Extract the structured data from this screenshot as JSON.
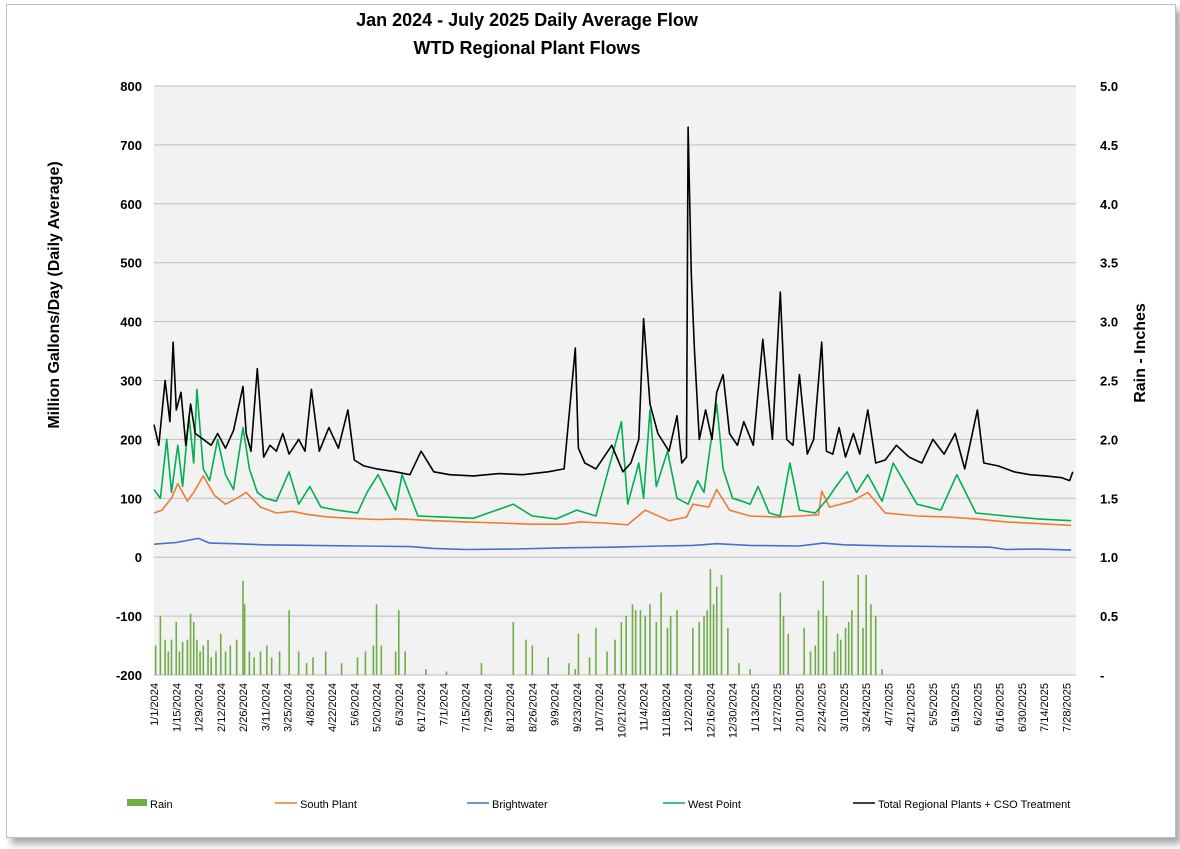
{
  "chart_data": {
    "type": "line",
    "title": "Jan 2024 - July 2025 Daily Average Flow",
    "subtitle": "WTD Regional Plant Flows",
    "ylabel": "Million Gallons/Day (Daily Average)",
    "y2label": "Rain - Inches",
    "ylim": [
      -200,
      800
    ],
    "yticks": [
      -200,
      -100,
      0,
      100,
      200,
      300,
      400,
      500,
      600,
      700,
      800
    ],
    "y2lim": [
      0,
      5
    ],
    "y2ticks": [
      "-",
      "0.5",
      "1.0",
      "1.5",
      "2.0",
      "2.5",
      "3.0",
      "3.5",
      "4.0",
      "4.5",
      "5.0"
    ],
    "xlim": [
      "2024-01-01",
      "2025-08-03"
    ],
    "x_tick_labels": [
      "1/1/2024",
      "1/15/2024",
      "1/29/2024",
      "2/12/2024",
      "2/26/2024",
      "3/11/2024",
      "3/25/2024",
      "4/8/2024",
      "4/22/2024",
      "5/6/2024",
      "5/20/2024",
      "6/3/2024",
      "6/17/2024",
      "7/1/2024",
      "7/15/2024",
      "7/29/2024",
      "8/12/2024",
      "8/26/2024",
      "9/9/2024",
      "9/23/2024",
      "10/7/2024",
      "10/21/2024",
      "11/4/2024",
      "11/18/2024",
      "12/2/2024",
      "12/16/2024",
      "12/30/2024",
      "1/13/2025",
      "1/27/2025",
      "2/10/2025",
      "2/24/2025",
      "3/10/2025",
      "3/24/2025",
      "4/7/2025",
      "4/21/2025",
      "5/5/2025",
      "5/19/2025",
      "6/2/2025",
      "6/16/2025",
      "6/30/2025",
      "7/14/2025",
      "7/28/2025"
    ],
    "grid": true,
    "legend_position": "bottom",
    "series": [
      {
        "name": "Rain",
        "type": "bar",
        "axis": "right",
        "color": "#70ad47",
        "x": [
          "2024-01-02",
          "2024-01-05",
          "2024-01-08",
          "2024-01-10",
          "2024-01-12",
          "2024-01-15",
          "2024-01-17",
          "2024-01-19",
          "2024-01-22",
          "2024-01-24",
          "2024-01-26",
          "2024-01-28",
          "2024-01-30",
          "2024-02-01",
          "2024-02-04",
          "2024-02-06",
          "2024-02-09",
          "2024-02-12",
          "2024-02-15",
          "2024-02-18",
          "2024-02-22",
          "2024-02-26",
          "2024-02-27",
          "2024-03-01",
          "2024-03-04",
          "2024-03-08",
          "2024-03-12",
          "2024-03-15",
          "2024-03-20",
          "2024-03-26",
          "2024-04-01",
          "2024-04-06",
          "2024-04-10",
          "2024-04-18",
          "2024-04-28",
          "2024-05-08",
          "2024-05-13",
          "2024-05-18",
          "2024-05-20",
          "2024-05-23",
          "2024-06-01",
          "2024-06-03",
          "2024-06-07",
          "2024-06-20",
          "2024-07-03",
          "2024-07-25",
          "2024-08-14",
          "2024-08-22",
          "2024-08-26",
          "2024-09-05",
          "2024-09-18",
          "2024-09-22",
          "2024-09-24",
          "2024-10-01",
          "2024-10-05",
          "2024-10-12",
          "2024-10-17",
          "2024-10-21",
          "2024-10-24",
          "2024-10-28",
          "2024-10-30",
          "2024-11-02",
          "2024-11-05",
          "2024-11-08",
          "2024-11-12",
          "2024-11-15",
          "2024-11-19",
          "2024-11-21",
          "2024-11-25",
          "2024-12-05",
          "2024-12-09",
          "2024-12-12",
          "2024-12-14",
          "2024-12-16",
          "2024-12-18",
          "2024-12-20",
          "2024-12-23",
          "2024-12-27",
          "2025-01-03",
          "2025-01-10",
          "2025-01-29",
          "2025-01-31",
          "2025-02-03",
          "2025-02-13",
          "2025-02-17",
          "2025-02-20",
          "2025-02-22",
          "2025-02-25",
          "2025-02-27",
          "2025-03-04",
          "2025-03-06",
          "2025-03-08",
          "2025-03-11",
          "2025-03-13",
          "2025-03-15",
          "2025-03-19",
          "2025-03-22",
          "2025-03-24",
          "2025-03-27",
          "2025-03-30",
          "2025-04-03"
        ],
        "values": [
          0.25,
          0.5,
          0.3,
          0.2,
          0.3,
          0.45,
          0.2,
          0.28,
          0.3,
          0.52,
          0.45,
          0.3,
          0.2,
          0.25,
          0.3,
          0.15,
          0.2,
          0.35,
          0.2,
          0.25,
          0.3,
          0.8,
          0.6,
          0.2,
          0.15,
          0.2,
          0.25,
          0.15,
          0.2,
          0.55,
          0.2,
          0.1,
          0.15,
          0.2,
          0.1,
          0.15,
          0.2,
          0.25,
          0.6,
          0.25,
          0.2,
          0.55,
          0.2,
          0.05,
          0.03,
          0.1,
          0.45,
          0.3,
          0.25,
          0.15,
          0.1,
          0.05,
          0.35,
          0.15,
          0.4,
          0.2,
          0.3,
          0.45,
          0.5,
          0.6,
          0.55,
          0.55,
          0.5,
          0.6,
          0.45,
          0.7,
          0.4,
          0.5,
          0.55,
          0.4,
          0.45,
          0.5,
          0.55,
          0.9,
          0.6,
          0.75,
          0.85,
          0.4,
          0.1,
          0.05,
          0.7,
          0.5,
          0.35,
          0.4,
          0.2,
          0.25,
          0.55,
          0.8,
          0.5,
          0.2,
          0.35,
          0.3,
          0.4,
          0.45,
          0.55,
          0.85,
          0.4,
          0.85,
          0.6,
          0.5,
          0.05
        ]
      },
      {
        "name": "South Plant",
        "type": "line",
        "axis": "left",
        "color": "#ed7d31",
        "x": [
          "2024-01-01",
          "2024-01-06",
          "2024-01-12",
          "2024-01-16",
          "2024-01-22",
          "2024-01-26",
          "2024-02-01",
          "2024-02-08",
          "2024-02-15",
          "2024-02-22",
          "2024-02-28",
          "2024-03-08",
          "2024-03-18",
          "2024-03-28",
          "2024-04-08",
          "2024-04-20",
          "2024-05-04",
          "2024-05-20",
          "2024-06-04",
          "2024-06-25",
          "2024-07-15",
          "2024-08-05",
          "2024-08-25",
          "2024-09-15",
          "2024-09-25",
          "2024-10-10",
          "2024-10-25",
          "2024-11-05",
          "2024-11-20",
          "2024-12-01",
          "2024-12-05",
          "2024-12-15",
          "2024-12-20",
          "2024-12-28",
          "2025-01-10",
          "2025-01-28",
          "2025-02-10",
          "2025-02-22",
          "2025-02-24",
          "2025-03-01",
          "2025-03-15",
          "2025-03-25",
          "2025-04-05",
          "2025-04-25",
          "2025-05-15",
          "2025-06-01",
          "2025-06-20",
          "2025-07-10",
          "2025-07-31"
        ],
        "values": [
          75,
          80,
          100,
          125,
          95,
          110,
          138,
          105,
          90,
          100,
          110,
          85,
          75,
          78,
          72,
          68,
          66,
          64,
          65,
          62,
          60,
          58,
          56,
          56,
          60,
          58,
          55,
          80,
          62,
          68,
          90,
          85,
          115,
          80,
          70,
          68,
          70,
          72,
          112,
          85,
          95,
          110,
          75,
          70,
          68,
          65,
          60,
          57,
          54
        ]
      },
      {
        "name": "Brightwater",
        "type": "line",
        "axis": "left",
        "color": "#4472c4",
        "x": [
          "2024-01-01",
          "2024-01-15",
          "2024-01-29",
          "2024-02-05",
          "2024-02-20",
          "2024-03-10",
          "2024-04-10",
          "2024-05-10",
          "2024-06-10",
          "2024-06-25",
          "2024-07-15",
          "2024-08-15",
          "2024-09-15",
          "2024-10-15",
          "2024-11-15",
          "2024-12-05",
          "2024-12-20",
          "2025-01-10",
          "2025-02-10",
          "2025-02-25",
          "2025-03-10",
          "2025-04-10",
          "2025-05-10",
          "2025-06-10",
          "2025-06-20",
          "2025-07-10",
          "2025-07-31"
        ],
        "values": [
          22,
          25,
          32,
          24,
          23,
          21,
          20,
          19,
          18,
          15,
          13,
          14,
          16,
          17,
          19,
          20,
          23,
          20,
          19,
          24,
          21,
          19,
          18,
          17,
          13,
          14,
          12
        ]
      },
      {
        "name": "West Point",
        "type": "line",
        "axis": "left",
        "color": "#00b050",
        "x": [
          "2024-01-01",
          "2024-01-05",
          "2024-01-09",
          "2024-01-12",
          "2024-01-16",
          "2024-01-19",
          "2024-01-23",
          "2024-01-26",
          "2024-01-28",
          "2024-02-01",
          "2024-02-05",
          "2024-02-10",
          "2024-02-15",
          "2024-02-20",
          "2024-02-26",
          "2024-03-01",
          "2024-03-06",
          "2024-03-11",
          "2024-03-18",
          "2024-03-26",
          "2024-04-01",
          "2024-04-08",
          "2024-04-15",
          "2024-04-25",
          "2024-05-08",
          "2024-05-14",
          "2024-05-21",
          "2024-06-01",
          "2024-06-05",
          "2024-06-15",
          "2024-07-01",
          "2024-07-20",
          "2024-08-14",
          "2024-08-26",
          "2024-09-10",
          "2024-09-23",
          "2024-10-05",
          "2024-10-21",
          "2024-10-25",
          "2024-11-01",
          "2024-11-04",
          "2024-11-08",
          "2024-11-12",
          "2024-11-19",
          "2024-11-25",
          "2024-12-02",
          "2024-12-08",
          "2024-12-12",
          "2024-12-16",
          "2024-12-20",
          "2024-12-24",
          "2024-12-30",
          "2025-01-05",
          "2025-01-10",
          "2025-01-15",
          "2025-01-22",
          "2025-01-29",
          "2025-02-04",
          "2025-02-10",
          "2025-02-20",
          "2025-02-28",
          "2025-03-05",
          "2025-03-12",
          "2025-03-18",
          "2025-03-25",
          "2025-04-03",
          "2025-04-10",
          "2025-04-25",
          "2025-05-10",
          "2025-05-20",
          "2025-06-01",
          "2025-06-20",
          "2025-07-10",
          "2025-07-31"
        ],
        "values": [
          115,
          100,
          200,
          110,
          190,
          120,
          240,
          160,
          285,
          150,
          130,
          200,
          140,
          115,
          220,
          150,
          110,
          100,
          95,
          145,
          90,
          120,
          85,
          80,
          75,
          110,
          140,
          80,
          140,
          70,
          68,
          66,
          90,
          70,
          65,
          80,
          70,
          230,
          90,
          160,
          100,
          250,
          120,
          180,
          100,
          90,
          130,
          110,
          190,
          260,
          150,
          100,
          95,
          90,
          120,
          75,
          70,
          160,
          80,
          75,
          100,
          120,
          145,
          110,
          140,
          95,
          160,
          90,
          80,
          140,
          75,
          70,
          65,
          62
        ]
      },
      {
        "name": "Total Regional Plants + CSO Treatment",
        "type": "line",
        "axis": "left",
        "color": "#000000",
        "x": [
          "2024-01-01",
          "2024-01-04",
          "2024-01-08",
          "2024-01-11",
          "2024-01-13",
          "2024-01-15",
          "2024-01-18",
          "2024-01-21",
          "2024-01-24",
          "2024-01-27",
          "2024-02-01",
          "2024-02-06",
          "2024-02-10",
          "2024-02-15",
          "2024-02-20",
          "2024-02-26",
          "2024-02-28",
          "2024-03-02",
          "2024-03-06",
          "2024-03-10",
          "2024-03-14",
          "2024-03-18",
          "2024-03-22",
          "2024-03-26",
          "2024-04-01",
          "2024-04-05",
          "2024-04-09",
          "2024-04-14",
          "2024-04-20",
          "2024-04-26",
          "2024-05-02",
          "2024-05-06",
          "2024-05-12",
          "2024-05-20",
          "2024-06-01",
          "2024-06-10",
          "2024-06-17",
          "2024-06-25",
          "2024-07-05",
          "2024-07-20",
          "2024-08-05",
          "2024-08-20",
          "2024-09-05",
          "2024-09-15",
          "2024-09-22",
          "2024-09-24",
          "2024-09-28",
          "2024-10-05",
          "2024-10-15",
          "2024-10-22",
          "2024-10-27",
          "2024-11-01",
          "2024-11-04",
          "2024-11-08",
          "2024-11-13",
          "2024-11-20",
          "2024-11-25",
          "2024-11-28",
          "2024-12-01",
          "2024-12-02",
          "2024-12-04",
          "2024-12-06",
          "2024-12-09",
          "2024-12-13",
          "2024-12-17",
          "2024-12-20",
          "2024-12-24",
          "2024-12-28",
          "2025-01-02",
          "2025-01-06",
          "2025-01-12",
          "2025-01-18",
          "2025-01-24",
          "2025-01-29",
          "2025-02-02",
          "2025-02-06",
          "2025-02-10",
          "2025-02-15",
          "2025-02-19",
          "2025-02-24",
          "2025-02-27",
          "2025-03-03",
          "2025-03-07",
          "2025-03-11",
          "2025-03-16",
          "2025-03-20",
          "2025-03-25",
          "2025-03-30",
          "2025-04-05",
          "2025-04-12",
          "2025-04-20",
          "2025-04-28",
          "2025-05-05",
          "2025-05-12",
          "2025-05-19",
          "2025-05-25",
          "2025-06-02",
          "2025-06-06",
          "2025-06-15",
          "2025-06-25",
          "2025-07-05",
          "2025-07-15",
          "2025-07-25",
          "2025-07-30",
          "2025-08-01"
        ],
        "values": [
          225,
          190,
          300,
          230,
          365,
          250,
          280,
          190,
          260,
          210,
          200,
          190,
          210,
          185,
          215,
          290,
          210,
          180,
          320,
          170,
          190,
          180,
          210,
          175,
          200,
          180,
          285,
          180,
          220,
          185,
          250,
          165,
          155,
          150,
          145,
          140,
          180,
          145,
          140,
          138,
          142,
          140,
          145,
          150,
          355,
          185,
          160,
          150,
          190,
          145,
          160,
          200,
          405,
          260,
          210,
          180,
          240,
          160,
          170,
          730,
          480,
          350,
          200,
          250,
          200,
          280,
          310,
          210,
          190,
          230,
          190,
          370,
          200,
          450,
          200,
          190,
          310,
          175,
          200,
          365,
          180,
          175,
          220,
          170,
          210,
          175,
          250,
          160,
          165,
          190,
          170,
          160,
          200,
          175,
          210,
          150,
          250,
          160,
          155,
          145,
          140,
          138,
          135,
          130,
          145
        ]
      }
    ]
  }
}
